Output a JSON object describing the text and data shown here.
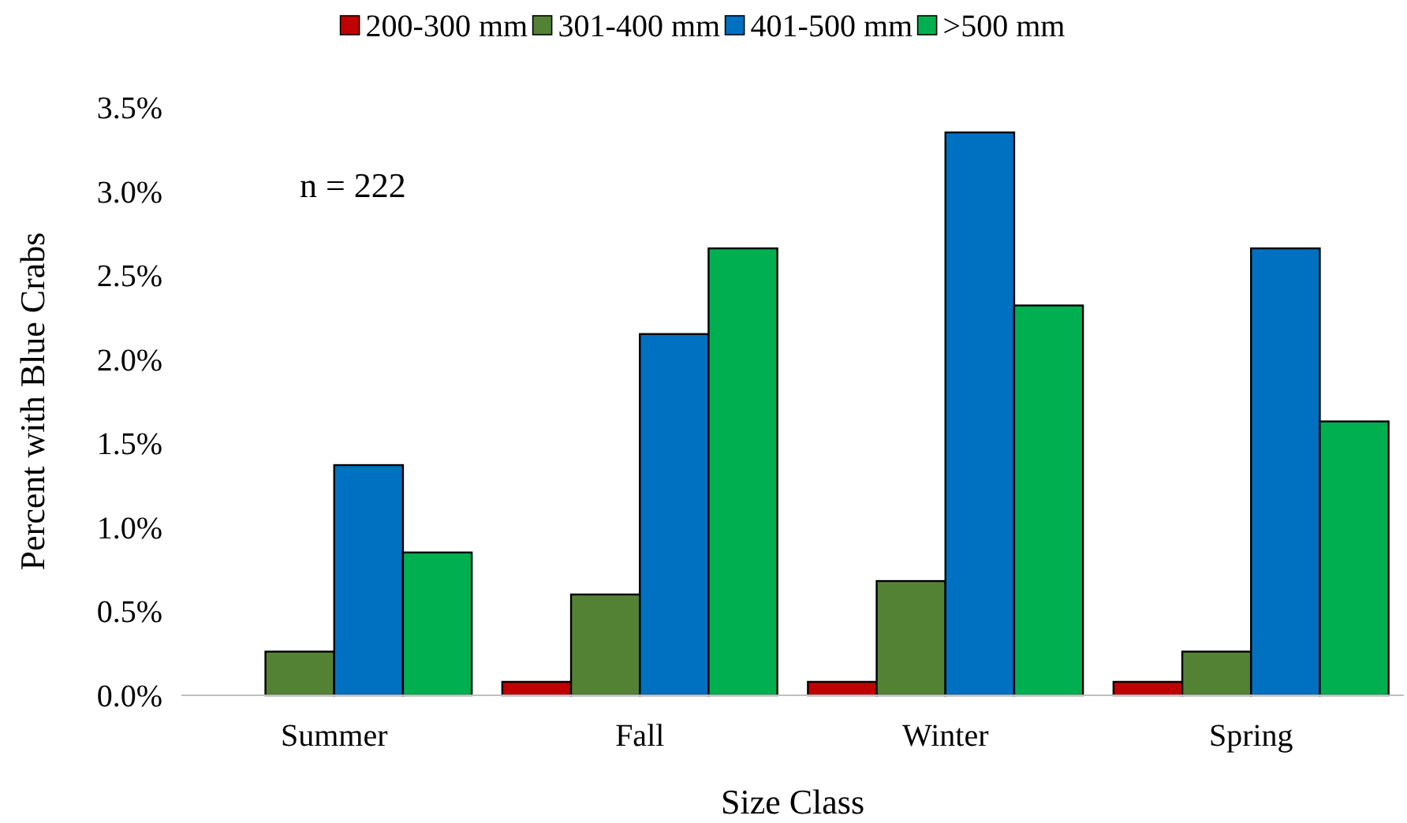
{
  "chart_data": {
    "type": "bar",
    "xlabel": "Size Class",
    "ylabel": "Percent with Blue Crabs",
    "categories": [
      "Summer",
      "Fall",
      "Winter",
      "Spring"
    ],
    "series": [
      {
        "name": "200-300 mm",
        "color": "#c00000",
        "values": [
          0,
          0.08,
          0.08,
          0.08
        ]
      },
      {
        "name": "301-400 mm",
        "color": "#548235",
        "values": [
          0.26,
          0.6,
          0.68,
          0.26
        ]
      },
      {
        "name": "401-500 mm",
        "color": "#0070c0",
        "values": [
          1.37,
          2.15,
          3.35,
          2.66
        ]
      },
      {
        "name": ">500 mm",
        "color": "#00b050",
        "values": [
          0.85,
          2.66,
          2.32,
          1.63
        ]
      }
    ],
    "ylim": [
      0,
      3.5
    ],
    "yticks": [
      {
        "value": 0,
        "label": "0.0%"
      },
      {
        "value": 0.5,
        "label": "0.5%"
      },
      {
        "value": 1,
        "label": "1.0%"
      },
      {
        "value": 1.5,
        "label": "1.5%"
      },
      {
        "value": 2,
        "label": "2.0%"
      },
      {
        "value": 2.5,
        "label": "2.5%"
      },
      {
        "value": 3,
        "label": "3.0%"
      },
      {
        "value": 3.5,
        "label": "3.5%"
      }
    ],
    "grid": false,
    "legend": "top",
    "annotations": [
      "n = 222"
    ]
  }
}
